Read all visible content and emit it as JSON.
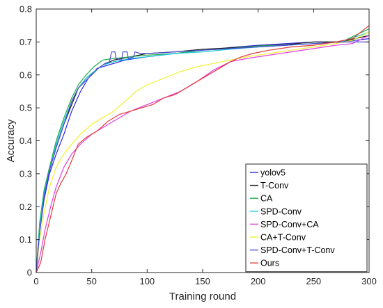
{
  "chart_data": {
    "type": "line",
    "xlabel": "Training round",
    "ylabel": "Accuracy",
    "xlim": [
      0,
      300
    ],
    "ylim": [
      0,
      0.8
    ],
    "x_ticks": [
      0,
      50,
      100,
      150,
      200,
      250,
      300
    ],
    "y_ticks": [
      0,
      0.1,
      0.2,
      0.3,
      0.4,
      0.5,
      0.6,
      0.7,
      0.8
    ],
    "x_tick_labels": [
      "0",
      "50",
      "100",
      "150",
      "200",
      "250",
      "300"
    ],
    "y_tick_labels": [
      "0",
      "0.1",
      "0.2",
      "0.3",
      "0.4",
      "0.5",
      "0.6",
      "0.7",
      "0.8"
    ],
    "grid": false,
    "legend_position": "bottom-right",
    "series": [
      {
        "name": "yolov5",
        "color": "#2b2be0",
        "points": [
          [
            0,
            0
          ],
          [
            3,
            0.12
          ],
          [
            7,
            0.22
          ],
          [
            12,
            0.3
          ],
          [
            18,
            0.36
          ],
          [
            25,
            0.42
          ],
          [
            32,
            0.49
          ],
          [
            40,
            0.55
          ],
          [
            47,
            0.59
          ],
          [
            55,
            0.62
          ],
          [
            65,
            0.63
          ],
          [
            80,
            0.645
          ],
          [
            100,
            0.655
          ],
          [
            125,
            0.665
          ],
          [
            150,
            0.675
          ],
          [
            175,
            0.683
          ],
          [
            200,
            0.69
          ],
          [
            225,
            0.695
          ],
          [
            250,
            0.7
          ],
          [
            275,
            0.7
          ],
          [
            300,
            0.71
          ]
        ]
      },
      {
        "name": "T-Conv",
        "color": "#1a1a1a",
        "points": [
          [
            0,
            0
          ],
          [
            3,
            0.14
          ],
          [
            7,
            0.24
          ],
          [
            12,
            0.31
          ],
          [
            18,
            0.38
          ],
          [
            25,
            0.45
          ],
          [
            32,
            0.51
          ],
          [
            38,
            0.56
          ],
          [
            45,
            0.59
          ],
          [
            52,
            0.61
          ],
          [
            60,
            0.63
          ],
          [
            70,
            0.645
          ],
          [
            85,
            0.655
          ],
          [
            100,
            0.665
          ],
          [
            125,
            0.67
          ],
          [
            150,
            0.678
          ],
          [
            175,
            0.682
          ],
          [
            200,
            0.688
          ],
          [
            225,
            0.692
          ],
          [
            250,
            0.7
          ],
          [
            275,
            0.7
          ],
          [
            300,
            0.72
          ]
        ]
      },
      {
        "name": "CA",
        "color": "#22b04a",
        "points": [
          [
            0,
            0
          ],
          [
            3,
            0.15
          ],
          [
            7,
            0.25
          ],
          [
            12,
            0.32
          ],
          [
            18,
            0.4
          ],
          [
            25,
            0.47
          ],
          [
            32,
            0.53
          ],
          [
            38,
            0.57
          ],
          [
            45,
            0.6
          ],
          [
            52,
            0.625
          ],
          [
            60,
            0.645
          ],
          [
            70,
            0.65
          ],
          [
            85,
            0.655
          ],
          [
            100,
            0.66
          ],
          [
            125,
            0.665
          ],
          [
            150,
            0.675
          ],
          [
            175,
            0.68
          ],
          [
            200,
            0.688
          ],
          [
            225,
            0.69
          ],
          [
            250,
            0.695
          ],
          [
            275,
            0.7
          ],
          [
            300,
            0.74
          ]
        ]
      },
      {
        "name": "SPD-Conv",
        "color": "#16c8d8",
        "points": [
          [
            0,
            0
          ],
          [
            3,
            0.14
          ],
          [
            7,
            0.24
          ],
          [
            12,
            0.31
          ],
          [
            18,
            0.39
          ],
          [
            25,
            0.46
          ],
          [
            32,
            0.52
          ],
          [
            38,
            0.56
          ],
          [
            45,
            0.59
          ],
          [
            52,
            0.61
          ],
          [
            60,
            0.63
          ],
          [
            70,
            0.64
          ],
          [
            85,
            0.65
          ],
          [
            100,
            0.655
          ],
          [
            125,
            0.665
          ],
          [
            150,
            0.67
          ],
          [
            175,
            0.678
          ],
          [
            200,
            0.685
          ],
          [
            225,
            0.69
          ],
          [
            250,
            0.695
          ],
          [
            275,
            0.7
          ],
          [
            300,
            0.73
          ]
        ]
      },
      {
        "name": "SPD-Conv+CA",
        "color": "#e23ce2",
        "points": [
          [
            0,
            0
          ],
          [
            4,
            0.06
          ],
          [
            8,
            0.13
          ],
          [
            13,
            0.2
          ],
          [
            18,
            0.26
          ],
          [
            25,
            0.32
          ],
          [
            32,
            0.36
          ],
          [
            40,
            0.39
          ],
          [
            50,
            0.42
          ],
          [
            60,
            0.44
          ],
          [
            70,
            0.46
          ],
          [
            85,
            0.49
          ],
          [
            100,
            0.51
          ],
          [
            115,
            0.53
          ],
          [
            130,
            0.55
          ],
          [
            145,
            0.58
          ],
          [
            160,
            0.615
          ],
          [
            175,
            0.64
          ],
          [
            190,
            0.65
          ],
          [
            210,
            0.66
          ],
          [
            230,
            0.67
          ],
          [
            250,
            0.68
          ],
          [
            270,
            0.69
          ],
          [
            285,
            0.695
          ],
          [
            300,
            0.72
          ]
        ]
      },
      {
        "name": "CA+T-Conv",
        "color": "#f0f030",
        "points": [
          [
            0,
            0
          ],
          [
            3,
            0.1
          ],
          [
            7,
            0.18
          ],
          [
            12,
            0.26
          ],
          [
            18,
            0.32
          ],
          [
            25,
            0.36
          ],
          [
            32,
            0.39
          ],
          [
            40,
            0.42
          ],
          [
            50,
            0.45
          ],
          [
            60,
            0.47
          ],
          [
            70,
            0.49
          ],
          [
            80,
            0.52
          ],
          [
            90,
            0.55
          ],
          [
            100,
            0.57
          ],
          [
            115,
            0.59
          ],
          [
            130,
            0.61
          ],
          [
            145,
            0.625
          ],
          [
            160,
            0.635
          ],
          [
            175,
            0.645
          ],
          [
            190,
            0.655
          ],
          [
            210,
            0.665
          ],
          [
            230,
            0.675
          ],
          [
            250,
            0.685
          ],
          [
            270,
            0.695
          ],
          [
            285,
            0.705
          ],
          [
            300,
            0.73
          ]
        ]
      },
      {
        "name": "SPD-Conv+T-Conv",
        "color": "#4b4bd8",
        "points": [
          [
            0,
            0
          ],
          [
            3,
            0.12
          ],
          [
            7,
            0.23
          ],
          [
            12,
            0.31
          ],
          [
            18,
            0.38
          ],
          [
            25,
            0.45
          ],
          [
            32,
            0.52
          ],
          [
            38,
            0.56
          ],
          [
            44,
            0.58
          ],
          [
            50,
            0.6
          ],
          [
            56,
            0.62
          ],
          [
            62,
            0.635
          ],
          [
            66,
            0.64
          ],
          [
            68,
            0.67
          ],
          [
            71,
            0.67
          ],
          [
            72,
            0.65
          ],
          [
            77,
            0.645
          ],
          [
            78,
            0.67
          ],
          [
            82,
            0.67
          ],
          [
            83,
            0.65
          ],
          [
            88,
            0.655
          ],
          [
            89,
            0.67
          ],
          [
            94,
            0.665
          ],
          [
            100,
            0.665
          ],
          [
            125,
            0.67
          ],
          [
            150,
            0.675
          ],
          [
            175,
            0.68
          ],
          [
            200,
            0.685
          ],
          [
            225,
            0.69
          ],
          [
            250,
            0.695
          ],
          [
            275,
            0.7
          ],
          [
            300,
            0.7
          ]
        ]
      },
      {
        "name": "Ours",
        "color": "#e23a3a",
        "points": [
          [
            0,
            0
          ],
          [
            4,
            0.03
          ],
          [
            8,
            0.1
          ],
          [
            13,
            0.17
          ],
          [
            18,
            0.24
          ],
          [
            22,
            0.27
          ],
          [
            27,
            0.3
          ],
          [
            32,
            0.34
          ],
          [
            38,
            0.39
          ],
          [
            45,
            0.41
          ],
          [
            55,
            0.43
          ],
          [
            65,
            0.46
          ],
          [
            75,
            0.48
          ],
          [
            85,
            0.49
          ],
          [
            95,
            0.5
          ],
          [
            105,
            0.51
          ],
          [
            115,
            0.53
          ],
          [
            125,
            0.54
          ],
          [
            135,
            0.56
          ],
          [
            145,
            0.58
          ],
          [
            155,
            0.6
          ],
          [
            165,
            0.62
          ],
          [
            175,
            0.64
          ],
          [
            185,
            0.655
          ],
          [
            195,
            0.665
          ],
          [
            210,
            0.675
          ],
          [
            230,
            0.685
          ],
          [
            250,
            0.69
          ],
          [
            270,
            0.7
          ],
          [
            285,
            0.71
          ],
          [
            300,
            0.75
          ]
        ]
      }
    ]
  }
}
